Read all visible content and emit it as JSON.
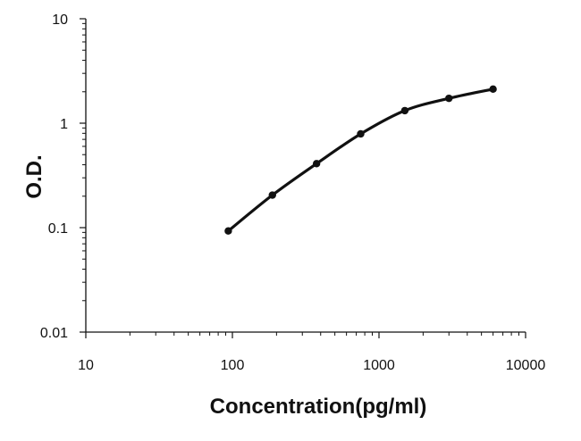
{
  "chart_data": {
    "type": "line",
    "xlabel": "Concentration(pg/ml)",
    "ylabel": "O.D.",
    "x_scale": "log",
    "y_scale": "log",
    "xlim": [
      10,
      10000
    ],
    "ylim": [
      0.01,
      10
    ],
    "x_ticks": [
      "10",
      "100",
      "1000",
      "10000"
    ],
    "y_ticks": [
      "0.01",
      "0.1",
      "1",
      "10"
    ],
    "grid": false,
    "legend": "none",
    "series": [
      {
        "x": [
          93.75,
          187.5,
          375,
          750,
          1500,
          3000,
          6000
        ],
        "y": [
          0.093,
          0.205,
          0.41,
          0.79,
          1.32,
          1.73,
          2.12
        ],
        "color": "#111111"
      }
    ]
  }
}
